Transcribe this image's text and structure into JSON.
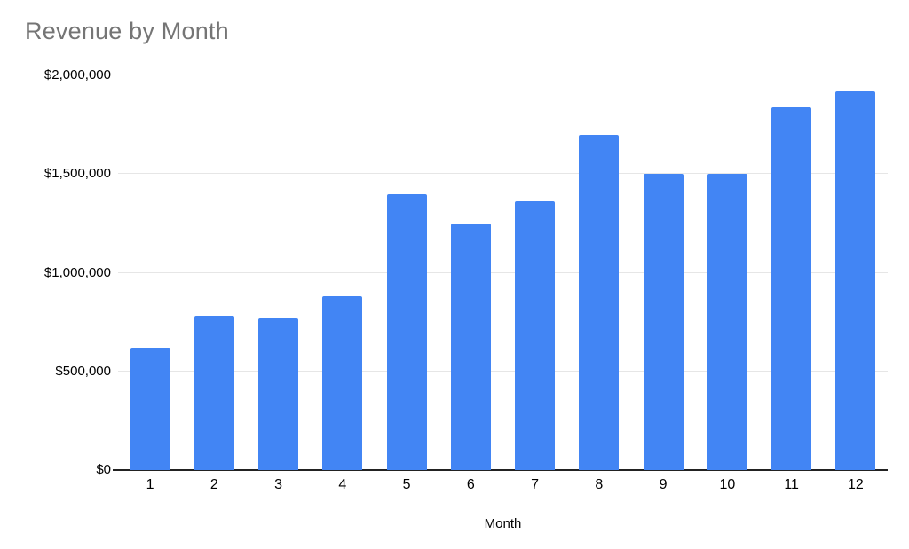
{
  "chart_data": {
    "type": "bar",
    "title": "Revenue by Month",
    "xlabel": "Month",
    "ylabel": "",
    "categories": [
      "1",
      "2",
      "3",
      "4",
      "5",
      "6",
      "7",
      "8",
      "9",
      "10",
      "11",
      "12"
    ],
    "values": [
      620000,
      780000,
      770000,
      880000,
      1400000,
      1250000,
      1360000,
      1700000,
      1500000,
      1500000,
      1840000,
      1920000
    ],
    "ylim": [
      0,
      2000000
    ],
    "yticks": [
      0,
      500000,
      1000000,
      1500000,
      2000000
    ],
    "ytick_labels": [
      "$0",
      "$500,000",
      "$1,000,000",
      "$1,500,000",
      "$2,000,000"
    ],
    "grid": true,
    "legend_position": "none",
    "bar_color": "#4285F4",
    "title_color": "#757575",
    "axis_label_color": "#000000",
    "gridline_color": "#e6e6e6",
    "baseline_color": "#222222",
    "background_color": "#ffffff"
  }
}
